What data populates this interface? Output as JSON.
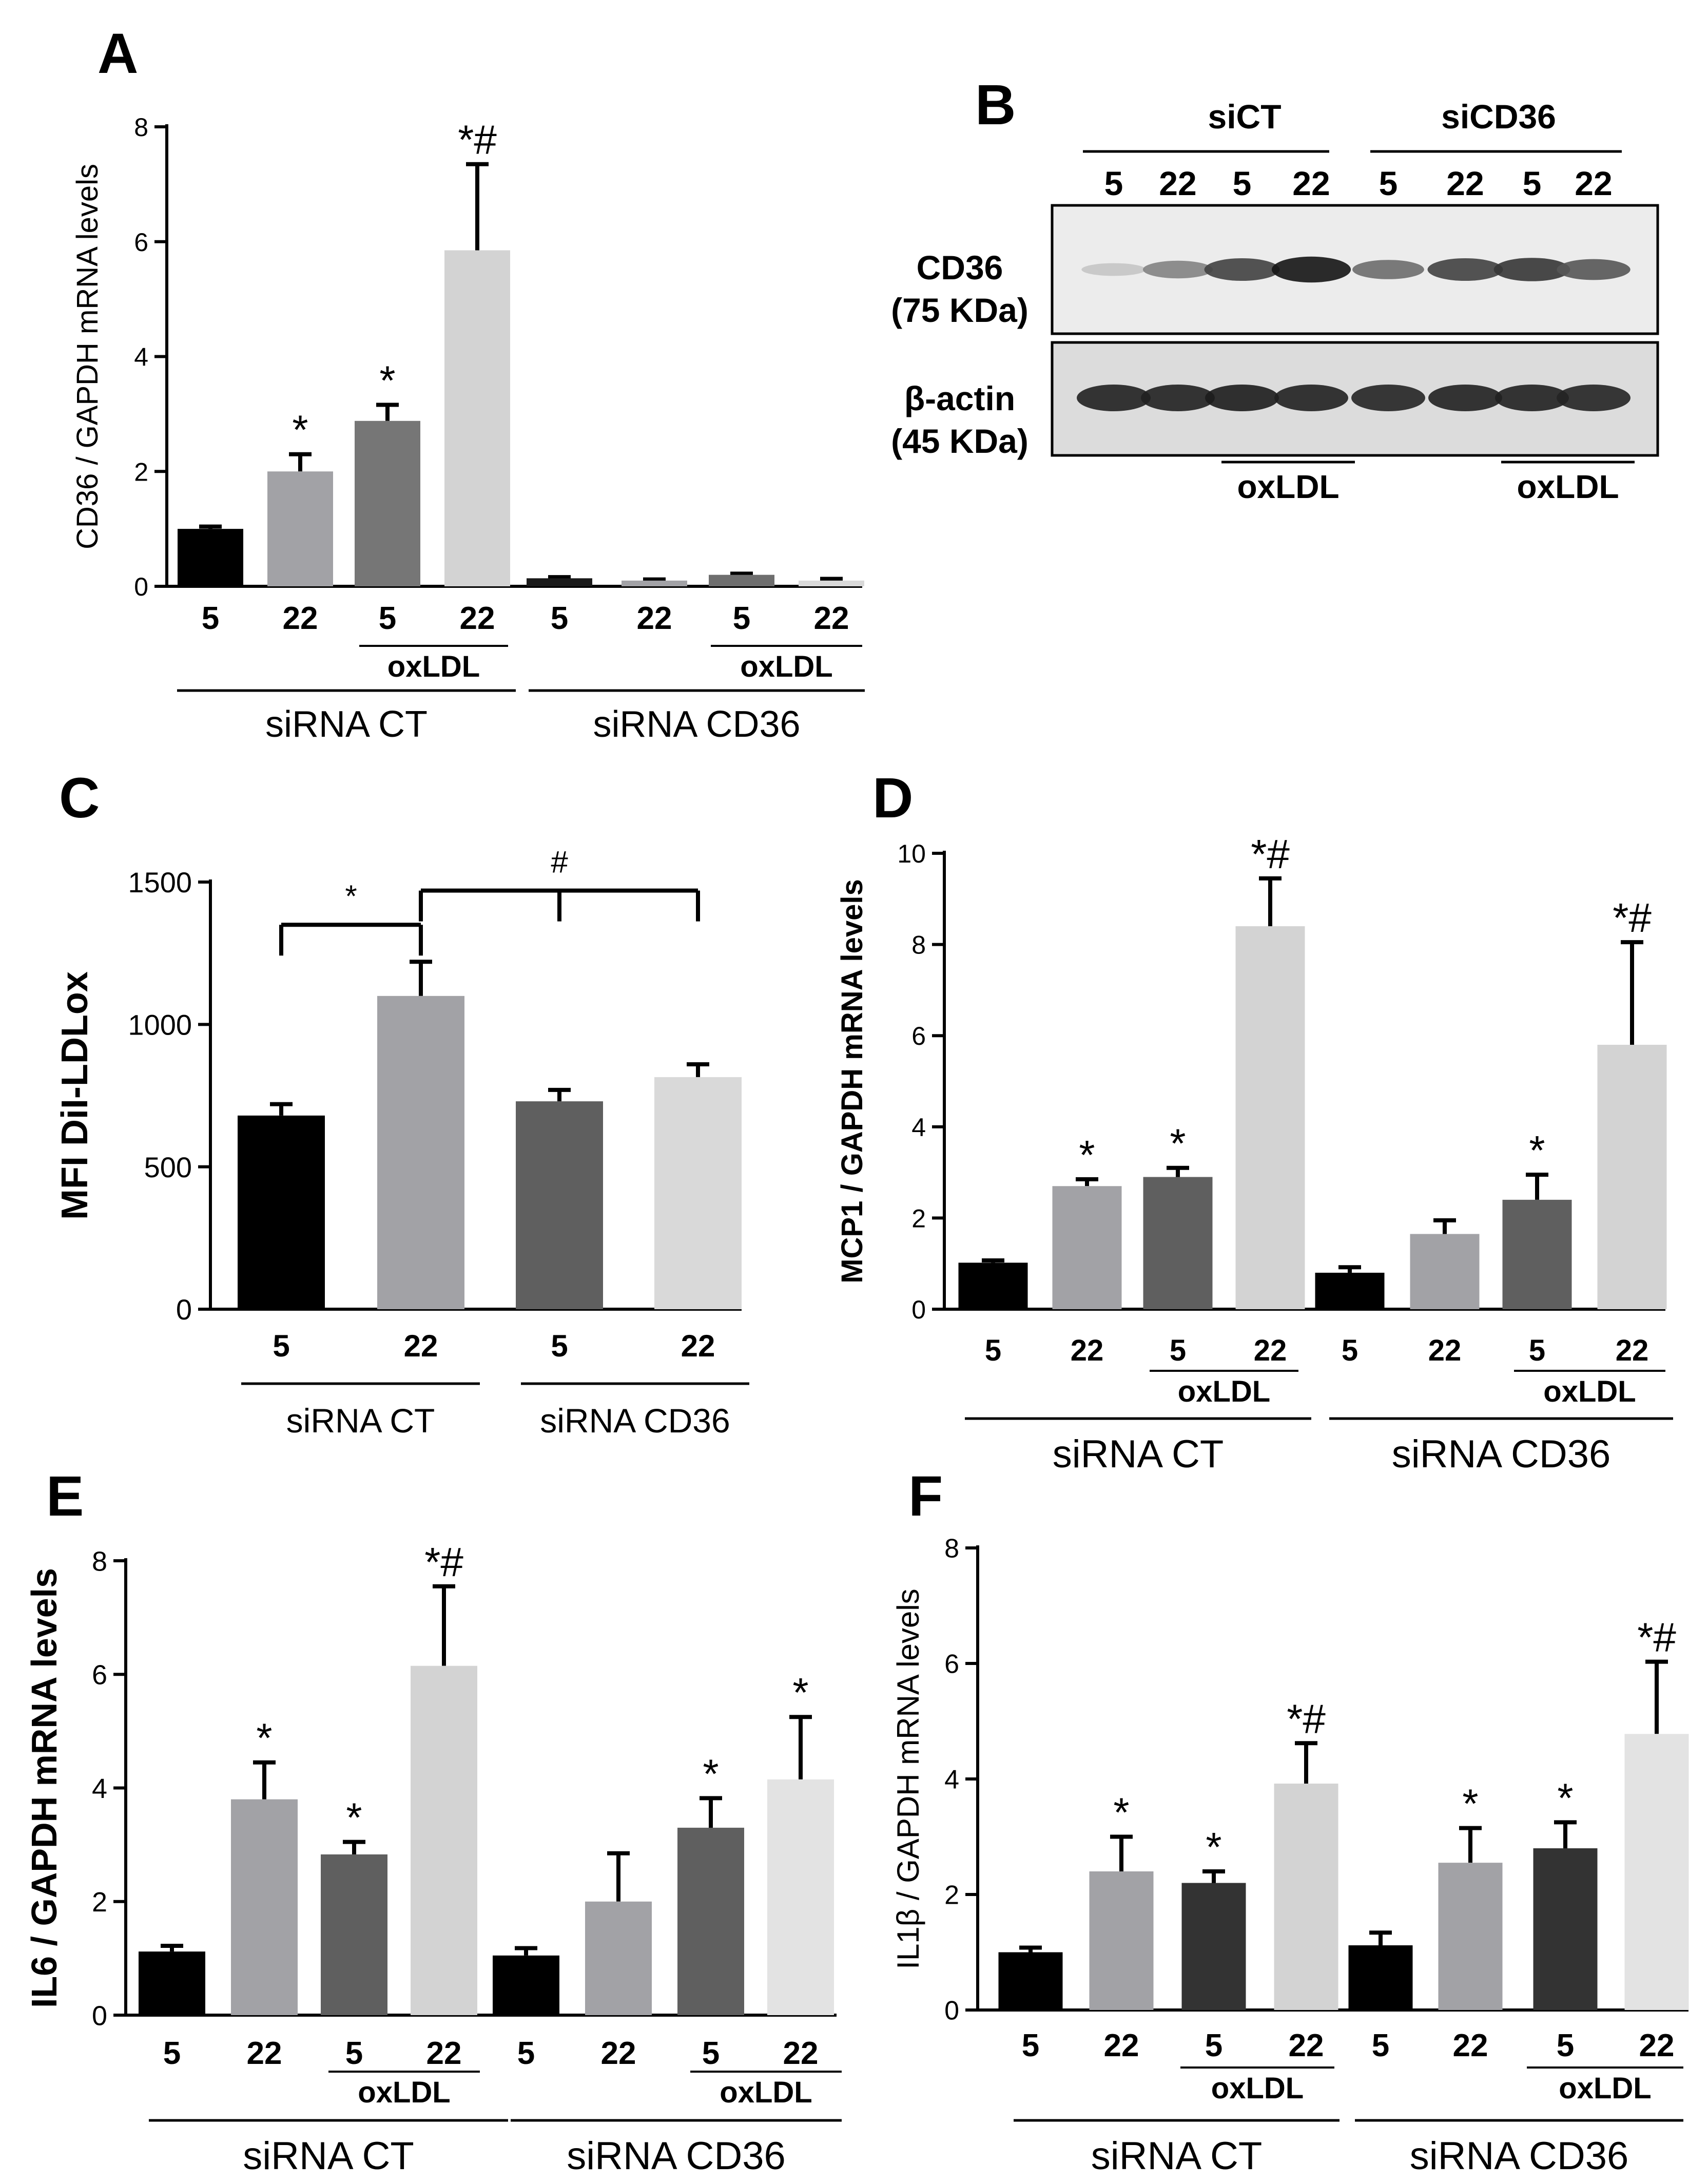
{
  "panels": {
    "A": {
      "letter": "A",
      "chart_data": {
        "type": "bar",
        "ylabel": "CD36 / GAPDH mRNA levels",
        "ylim": [
          0,
          8
        ],
        "yticks": [
          0,
          2,
          4,
          6,
          8
        ],
        "categories": [
          "5",
          "22",
          "5",
          "22",
          "5",
          "22",
          "5",
          "22"
        ],
        "values": [
          1.0,
          2.0,
          2.88,
          5.85,
          0.14,
          0.1,
          0.2,
          0.1
        ],
        "errors": [
          0.04,
          0.3,
          0.28,
          1.5,
          0.02,
          0.02,
          0.02,
          0.03
        ],
        "colors": [
          "#000000",
          "#a2a2a6",
          "#767676",
          "#d3d3d3",
          "#1a1a1a",
          "#a2a2a6",
          "#6e6e6e",
          "#d9d9d9"
        ],
        "annotations": [
          "",
          "*",
          "*",
          "*#",
          "",
          "",
          "",
          ""
        ],
        "groups": [
          "siRNA CT",
          "siRNA CD36"
        ],
        "treatment_label": "oxLDL"
      }
    },
    "B": {
      "letter": "B",
      "groups": [
        "siCT",
        "siCD36"
      ],
      "lanes": [
        "5",
        "22",
        "5",
        "22",
        "5",
        "22",
        "5",
        "22"
      ],
      "bands": [
        {
          "name": "CD36",
          "size": "(75 KDa)",
          "intensity": [
            0.15,
            0.45,
            0.75,
            0.95,
            0.55,
            0.75,
            0.8,
            0.65
          ]
        },
        {
          "name": "β-actin",
          "size": "(45 KDa)",
          "intensity": [
            0.9,
            0.9,
            0.92,
            0.9,
            0.88,
            0.9,
            0.9,
            0.88
          ]
        }
      ],
      "treatment_label": "oxLDL"
    },
    "C": {
      "letter": "C",
      "chart_data": {
        "type": "bar",
        "ylabel": "MFI DiI-LDLox",
        "ylim": [
          0,
          1500
        ],
        "yticks": [
          0,
          500,
          1000,
          1500
        ],
        "categories": [
          "5",
          "22",
          "5",
          "22"
        ],
        "values": [
          680,
          1100,
          730,
          815
        ],
        "errors": [
          40,
          120,
          40,
          45
        ],
        "colors": [
          "#000000",
          "#a2a2a6",
          "#5f5f5f",
          "#d9d9d9"
        ],
        "groups": [
          "siRNA CT",
          "siRNA CD36"
        ],
        "significance": [
          {
            "label": "*",
            "from": 0,
            "to": 1,
            "y": 1350
          },
          {
            "label": "#",
            "from": 1,
            "to": 3,
            "mid": 2,
            "y": 1470
          }
        ]
      }
    },
    "D": {
      "letter": "D",
      "chart_data": {
        "type": "bar",
        "ylabel": "MCP1 / GAPDH mRNA levels",
        "ylim": [
          0,
          10
        ],
        "yticks": [
          0,
          2,
          4,
          6,
          8,
          10
        ],
        "categories": [
          "5",
          "22",
          "5",
          "22",
          "5",
          "22",
          "5",
          "22"
        ],
        "values": [
          1.02,
          2.7,
          2.9,
          8.4,
          0.8,
          1.65,
          2.4,
          5.8
        ],
        "errors": [
          0.05,
          0.15,
          0.2,
          1.05,
          0.12,
          0.3,
          0.55,
          2.25
        ],
        "colors": [
          "#000000",
          "#a2a2a6",
          "#5f5f5f",
          "#d3d3d3",
          "#000000",
          "#a2a2a6",
          "#5f5f5f",
          "#d3d3d3"
        ],
        "annotations": [
          "",
          "*",
          "*",
          "*#",
          "",
          "",
          "*",
          "*#"
        ],
        "groups": [
          "siRNA CT",
          "siRNA CD36"
        ],
        "treatment_label": "oxLDL"
      }
    },
    "E": {
      "letter": "E",
      "chart_data": {
        "type": "bar",
        "ylabel": "IL6 / GAPDH mRNA levels",
        "ylim": [
          0,
          8
        ],
        "yticks": [
          0,
          2,
          4,
          6,
          8
        ],
        "categories": [
          "5",
          "22",
          "5",
          "22",
          "5",
          "22",
          "5",
          "22"
        ],
        "values": [
          1.12,
          3.8,
          2.83,
          6.15,
          1.05,
          2.0,
          3.3,
          4.15
        ],
        "errors": [
          0.1,
          0.65,
          0.22,
          1.4,
          0.13,
          0.85,
          0.52,
          1.1
        ],
        "colors": [
          "#000000",
          "#a2a2a6",
          "#5f5f5f",
          "#d3d3d3",
          "#000000",
          "#a2a2a6",
          "#5f5f5f",
          "#e3e3e3"
        ],
        "annotations": [
          "",
          "*",
          "*",
          "*#",
          "",
          "",
          "*",
          "*"
        ],
        "groups": [
          "siRNA CT",
          "siRNA CD36"
        ],
        "treatment_label": "oxLDL"
      }
    },
    "F": {
      "letter": "F",
      "chart_data": {
        "type": "bar",
        "ylabel": "IL1β / GAPDH mRNA levels",
        "ylim": [
          0,
          8
        ],
        "yticks": [
          0,
          2,
          4,
          6,
          8
        ],
        "categories": [
          "5",
          "22",
          "5",
          "22",
          "5",
          "22",
          "5",
          "22"
        ],
        "values": [
          1.0,
          2.4,
          2.2,
          3.92,
          1.12,
          2.55,
          2.8,
          4.78
        ],
        "errors": [
          0.08,
          0.6,
          0.2,
          0.7,
          0.22,
          0.6,
          0.45,
          1.25
        ],
        "colors": [
          "#000000",
          "#a2a2a6",
          "#333333",
          "#d3d3d3",
          "#000000",
          "#a2a2a6",
          "#333333",
          "#e3e3e3"
        ],
        "annotations": [
          "",
          "*",
          "*",
          "*#",
          "",
          "*",
          "*",
          "*#"
        ],
        "groups": [
          "siRNA CT",
          "siRNA CD36"
        ],
        "treatment_label": "oxLDL"
      }
    }
  }
}
